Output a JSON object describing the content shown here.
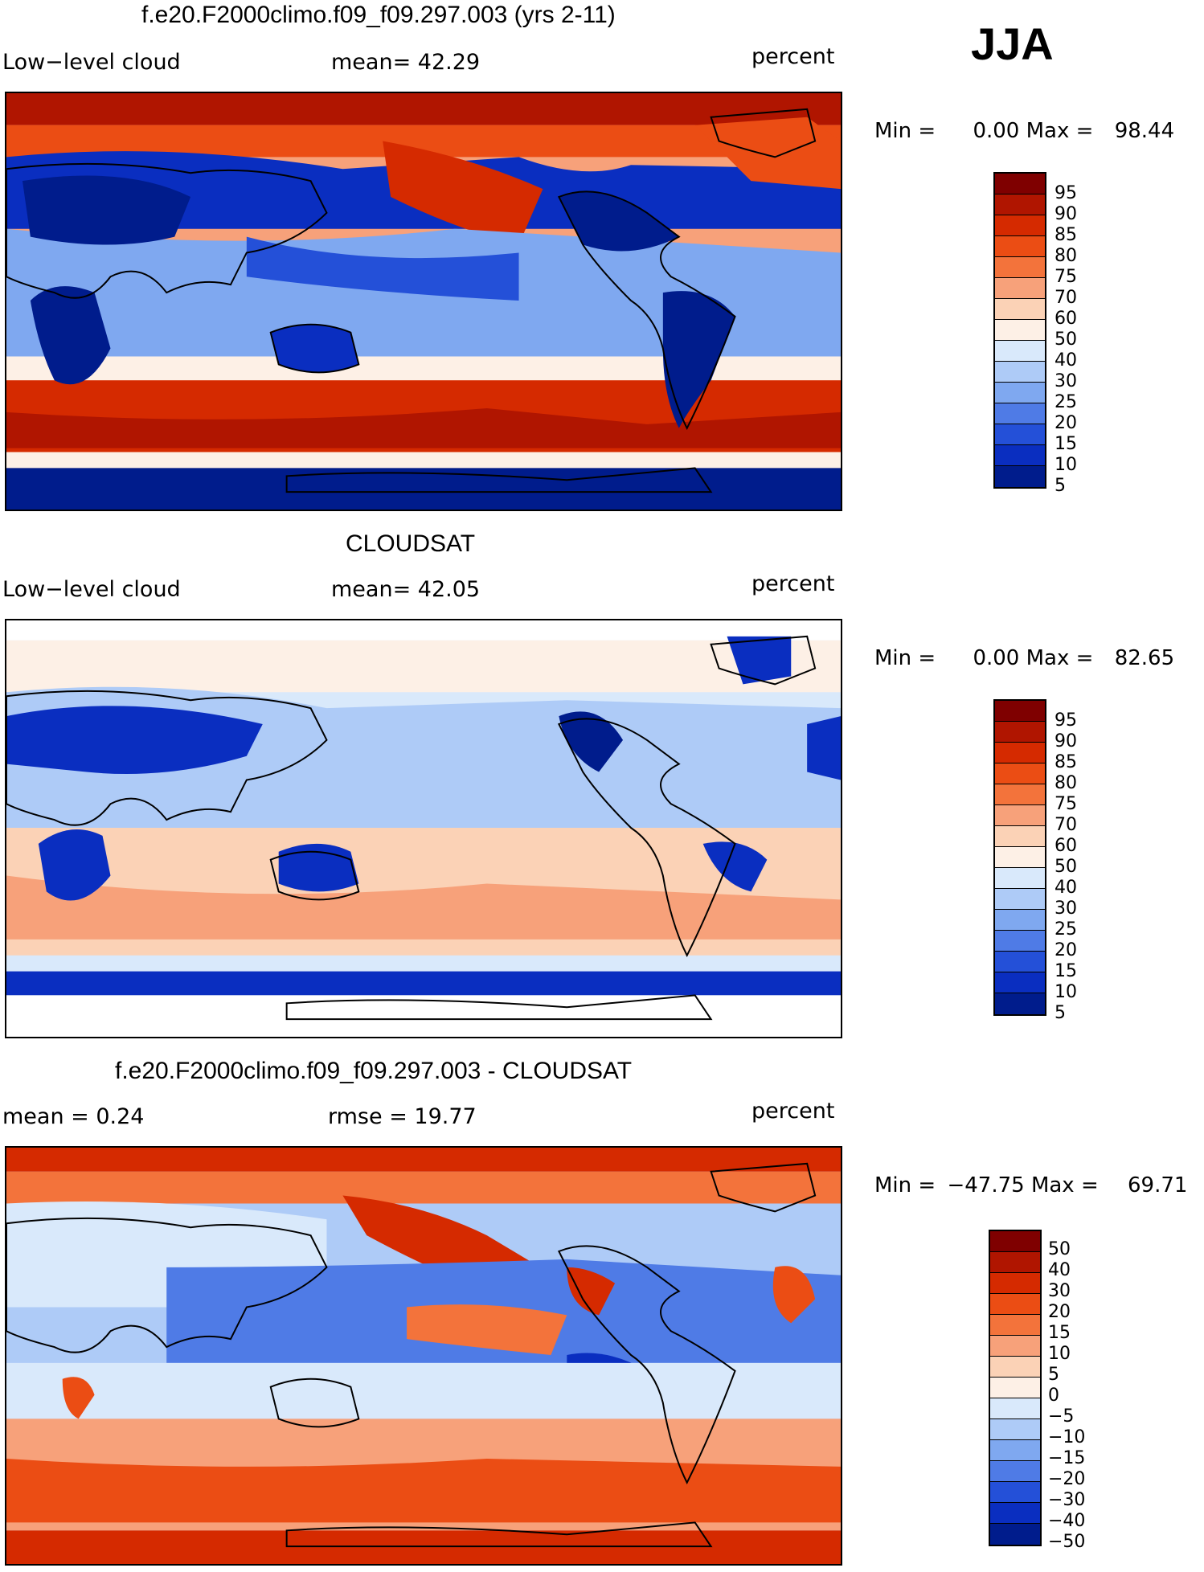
{
  "season": "JJA",
  "panels": [
    {
      "title": "f.e20.F2000climo.f09_f09.297.003 (yrs 2-11)",
      "left_label": "Low−level cloud",
      "center_label": "mean=   42.29",
      "units": "percent",
      "min_label": "Min =",
      "min_value": "0.00",
      "max_label": "Max =",
      "max_value": "98.44",
      "levels": [
        "95",
        "90",
        "85",
        "80",
        "75",
        "70",
        "60",
        "50",
        "40",
        "30",
        "25",
        "20",
        "15",
        "10",
        "5"
      ]
    },
    {
      "title": "CLOUDSAT",
      "left_label": "Low−level cloud",
      "center_label": "mean=   42.05",
      "units": "percent",
      "min_label": "Min =",
      "min_value": "0.00",
      "max_label": "Max =",
      "max_value": "82.65",
      "levels": [
        "95",
        "90",
        "85",
        "80",
        "75",
        "70",
        "60",
        "50",
        "40",
        "30",
        "25",
        "20",
        "15",
        "10",
        "5"
      ]
    },
    {
      "title": "f.e20.F2000climo.f09_f09.297.003 - CLOUDSAT",
      "left_label": "mean =    0.24",
      "center_label": "rmse =    19.77",
      "units": "percent",
      "min_label": "Min =",
      "min_value": "−47.75",
      "max_label": "Max =",
      "max_value": "69.71",
      "levels": [
        "50",
        "40",
        "30",
        "20",
        "15",
        "10",
        "5",
        "0",
        "−5",
        "−10",
        "−15",
        "−20",
        "−30",
        "−40",
        "−50"
      ]
    }
  ],
  "colors": {
    "diverging_scale": [
      "#7f0000",
      "#b01500",
      "#d52a00",
      "#eb4d14",
      "#f3733b",
      "#f7a17a",
      "#fbd2b6",
      "#fdf0e6",
      "#d9e9fb",
      "#aecbf7",
      "#7fa8f0",
      "#4f7be6",
      "#2450d8",
      "#0a2ec0",
      "#001c8c"
    ],
    "map_border": "#000000"
  }
}
